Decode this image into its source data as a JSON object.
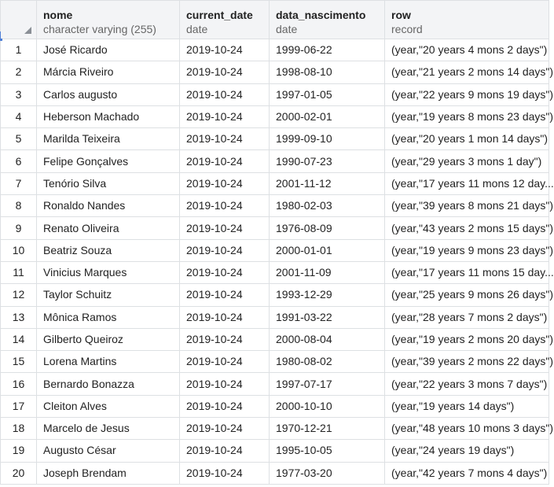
{
  "columns": [
    {
      "name": "nome",
      "type": "character varying (255)"
    },
    {
      "name": "current_date",
      "type": "date"
    },
    {
      "name": "data_nascimento",
      "type": "date"
    },
    {
      "name": "row",
      "type": "record"
    }
  ],
  "rows": [
    {
      "n": "1",
      "nome": "José Ricardo",
      "current_date": "2019-10-24",
      "data_nascimento": "1999-06-22",
      "row": "(year,\"20 years 4 mons 2 days\")"
    },
    {
      "n": "2",
      "nome": "Márcia Riveiro",
      "current_date": "2019-10-24",
      "data_nascimento": "1998-08-10",
      "row": "(year,\"21 years 2 mons 14 days\")"
    },
    {
      "n": "3",
      "nome": "Carlos augusto",
      "current_date": "2019-10-24",
      "data_nascimento": "1997-01-05",
      "row": "(year,\"22 years 9 mons 19 days\")"
    },
    {
      "n": "4",
      "nome": "Heberson Machado",
      "current_date": "2019-10-24",
      "data_nascimento": "2000-02-01",
      "row": "(year,\"19 years 8 mons 23 days\")"
    },
    {
      "n": "5",
      "nome": "Marilda Teixeira",
      "current_date": "2019-10-24",
      "data_nascimento": "1999-09-10",
      "row": "(year,\"20 years 1 mon 14 days\")"
    },
    {
      "n": "6",
      "nome": "Felipe Gonçalves",
      "current_date": "2019-10-24",
      "data_nascimento": "1990-07-23",
      "row": "(year,\"29 years 3 mons 1 day\")"
    },
    {
      "n": "7",
      "nome": "Tenório Silva",
      "current_date": "2019-10-24",
      "data_nascimento": "2001-11-12",
      "row": "(year,\"17 years 11 mons 12 day..."
    },
    {
      "n": "8",
      "nome": "Ronaldo Nandes",
      "current_date": "2019-10-24",
      "data_nascimento": "1980-02-03",
      "row": "(year,\"39 years 8 mons 21 days\")"
    },
    {
      "n": "9",
      "nome": "Renato Oliveira",
      "current_date": "2019-10-24",
      "data_nascimento": "1976-08-09",
      "row": "(year,\"43 years 2 mons 15 days\")"
    },
    {
      "n": "10",
      "nome": "Beatriz Souza",
      "current_date": "2019-10-24",
      "data_nascimento": "2000-01-01",
      "row": "(year,\"19 years 9 mons 23 days\")"
    },
    {
      "n": "11",
      "nome": "Vinicius Marques",
      "current_date": "2019-10-24",
      "data_nascimento": "2001-11-09",
      "row": "(year,\"17 years 11 mons 15 day..."
    },
    {
      "n": "12",
      "nome": "Taylor Schuitz",
      "current_date": "2019-10-24",
      "data_nascimento": "1993-12-29",
      "row": "(year,\"25 years 9 mons 26 days\")"
    },
    {
      "n": "13",
      "nome": "Mônica Ramos",
      "current_date": "2019-10-24",
      "data_nascimento": "1991-03-22",
      "row": "(year,\"28 years 7 mons 2 days\")"
    },
    {
      "n": "14",
      "nome": "Gilberto Queiroz",
      "current_date": "2019-10-24",
      "data_nascimento": "2000-08-04",
      "row": "(year,\"19 years 2 mons 20 days\")"
    },
    {
      "n": "15",
      "nome": "Lorena Martins",
      "current_date": "2019-10-24",
      "data_nascimento": "1980-08-02",
      "row": "(year,\"39 years 2 mons 22 days\")"
    },
    {
      "n": "16",
      "nome": "Bernardo Bonazza",
      "current_date": "2019-10-24",
      "data_nascimento": "1997-07-17",
      "row": "(year,\"22 years 3 mons 7 days\")"
    },
    {
      "n": "17",
      "nome": "Cleiton Alves",
      "current_date": "2019-10-24",
      "data_nascimento": "2000-10-10",
      "row": "(year,\"19 years 14 days\")"
    },
    {
      "n": "18",
      "nome": "Marcelo de Jesus",
      "current_date": "2019-10-24",
      "data_nascimento": "1970-12-21",
      "row": "(year,\"48 years 10 mons 3 days\")"
    },
    {
      "n": "19",
      "nome": "Augusto César",
      "current_date": "2019-10-24",
      "data_nascimento": "1995-10-05",
      "row": "(year,\"24 years 19 days\")"
    },
    {
      "n": "20",
      "nome": "Joseph Brendam",
      "current_date": "2019-10-24",
      "data_nascimento": "1977-03-20",
      "row": "(year,\"42 years 7 mons 4 days\")"
    }
  ]
}
